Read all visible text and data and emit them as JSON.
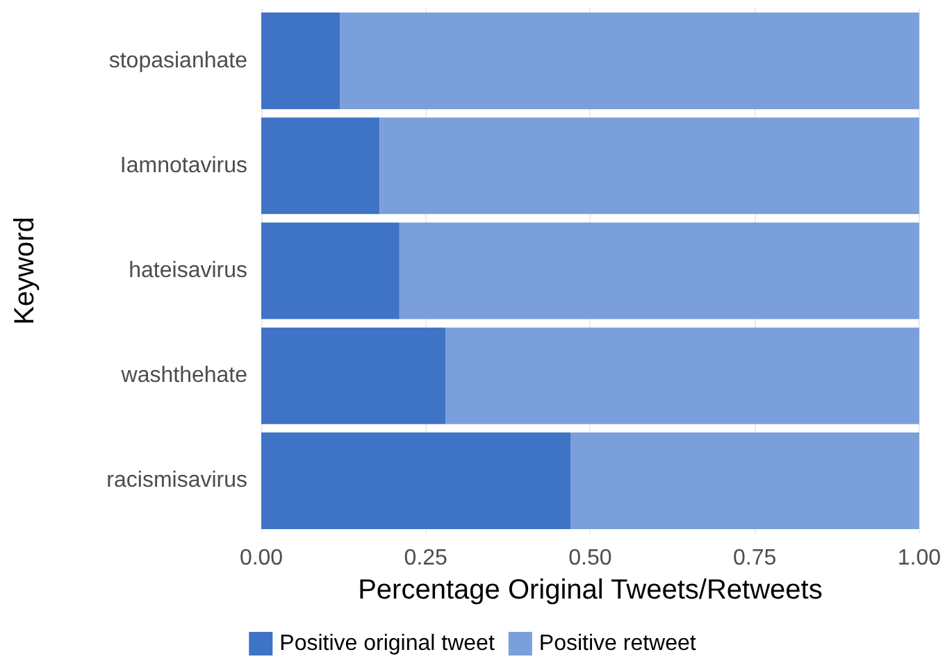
{
  "chart_data": {
    "type": "bar",
    "orientation": "horizontal",
    "stacked": true,
    "xlabel": "Percentage Original Tweets/Retweets",
    "ylabel": "Keyword",
    "categories": [
      "stopasianhate",
      "Iamnotavirus",
      "hateisavirus",
      "washthehate",
      "racismisavirus"
    ],
    "series": [
      {
        "name": "Positive original tweet",
        "color": "#3f73c6",
        "values": [
          0.12,
          0.18,
          0.21,
          0.28,
          0.47
        ]
      },
      {
        "name": "Positive retweet",
        "color": "#7a9fdb",
        "values": [
          0.88,
          0.82,
          0.79,
          0.72,
          0.53
        ]
      }
    ],
    "xlim": [
      0,
      1
    ],
    "xticks": [
      {
        "value": 0,
        "label": "0.00"
      },
      {
        "value": 0.25,
        "label": "0.25"
      },
      {
        "value": 0.5,
        "label": "0.50"
      },
      {
        "value": 0.75,
        "label": "0.75"
      },
      {
        "value": 1,
        "label": "1.00"
      }
    ],
    "grid": "x",
    "legend": "bottom"
  }
}
